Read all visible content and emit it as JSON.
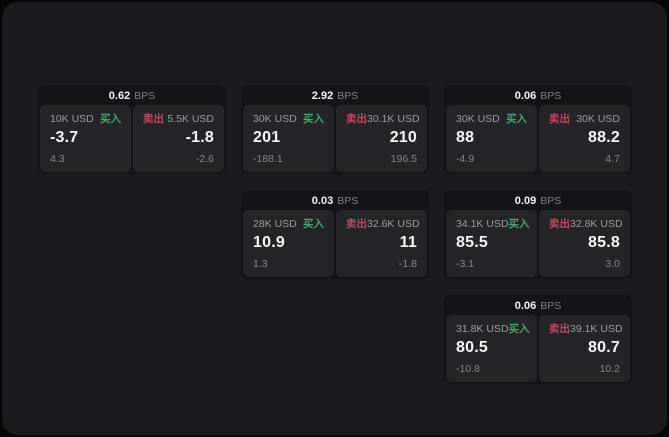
{
  "labels": {
    "bps_unit": "BPS",
    "buy": "买入",
    "sell": "卖出"
  },
  "colors": {
    "buy": "#47a46c",
    "sell": "#c0485e",
    "panel-bg": "#1b1b1d",
    "card-bg": "#141416",
    "tile-bg": "#242428"
  },
  "cards": [
    {
      "bps": "0.62",
      "buy": {
        "amount": "10K USD",
        "price": "-3.7",
        "delta": "4.3"
      },
      "sell": {
        "amount": "5.5K USD",
        "price": "-1.8",
        "delta": "-2.6"
      }
    },
    {
      "bps": "2.92",
      "buy": {
        "amount": "30K USD",
        "price": "201",
        "delta": "-188.1"
      },
      "sell": {
        "amount": "30.1K USD",
        "price": "210",
        "delta": "196.5"
      }
    },
    {
      "bps": "0.06",
      "buy": {
        "amount": "30K USD",
        "price": "88",
        "delta": "-4.9"
      },
      "sell": {
        "amount": "30K USD",
        "price": "88.2",
        "delta": "4.7"
      }
    },
    {
      "bps": "0.03",
      "buy": {
        "amount": "28K USD",
        "price": "10.9",
        "delta": "1.3"
      },
      "sell": {
        "amount": "32.6K USD",
        "price": "11",
        "delta": "-1.8"
      }
    },
    {
      "bps": "0.09",
      "buy": {
        "amount": "34.1K USD",
        "price": "85.5",
        "delta": "-3.1"
      },
      "sell": {
        "amount": "32.8K USD",
        "price": "85.8",
        "delta": "3.0"
      }
    },
    {
      "bps": "0.06",
      "buy": {
        "amount": "31.8K USD",
        "price": "80.5",
        "delta": "-10.8"
      },
      "sell": {
        "amount": "39.1K USD",
        "price": "80.7",
        "delta": "10.2"
      }
    }
  ]
}
